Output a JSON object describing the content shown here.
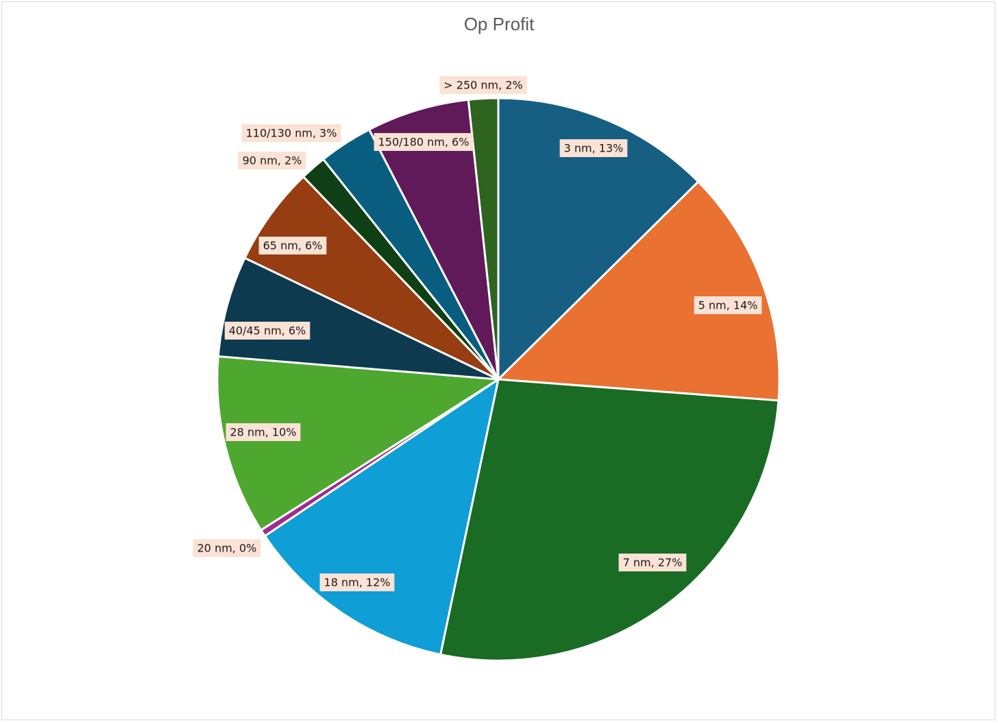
{
  "chart_data": {
    "type": "pie",
    "title": "Op Profit",
    "labels": [
      "3 nm",
      "5 nm",
      "7 nm",
      "18 nm",
      "20 nm",
      "28 nm",
      "40/45 nm",
      "65 nm",
      "90 nm",
      "110/130 nm",
      "150/180 nm",
      "> 250 nm"
    ],
    "values": [
      12.6,
      13.6,
      27.1,
      12.3,
      0.4,
      10.3,
      5.8,
      5.7,
      1.5,
      3.1,
      5.9,
      1.7
    ],
    "data_labels": [
      "3 nm, 13%",
      "5 nm, 14%",
      "7 nm, 27%",
      "18 nm, 12%",
      "20 nm, 0%",
      "28 nm, 10%",
      "40/45 nm, 6%",
      "65 nm, 6%",
      "90 nm, 2%",
      "110/130 nm, 3%",
      "150/180 nm, 6%",
      "> 250 nm, 2%"
    ],
    "colors": [
      "#175e83",
      "#e97132",
      "#1a6b24",
      "#0f9ed5",
      "#a02b93",
      "#4ea72e",
      "#0e3a50",
      "#963d11",
      "#0f3f14",
      "#095e80",
      "#601a5a",
      "#2e6320"
    ],
    "label_background": "#fae2d5",
    "start_angle_deg": 0,
    "direction": "clockwise",
    "legend": "none"
  }
}
